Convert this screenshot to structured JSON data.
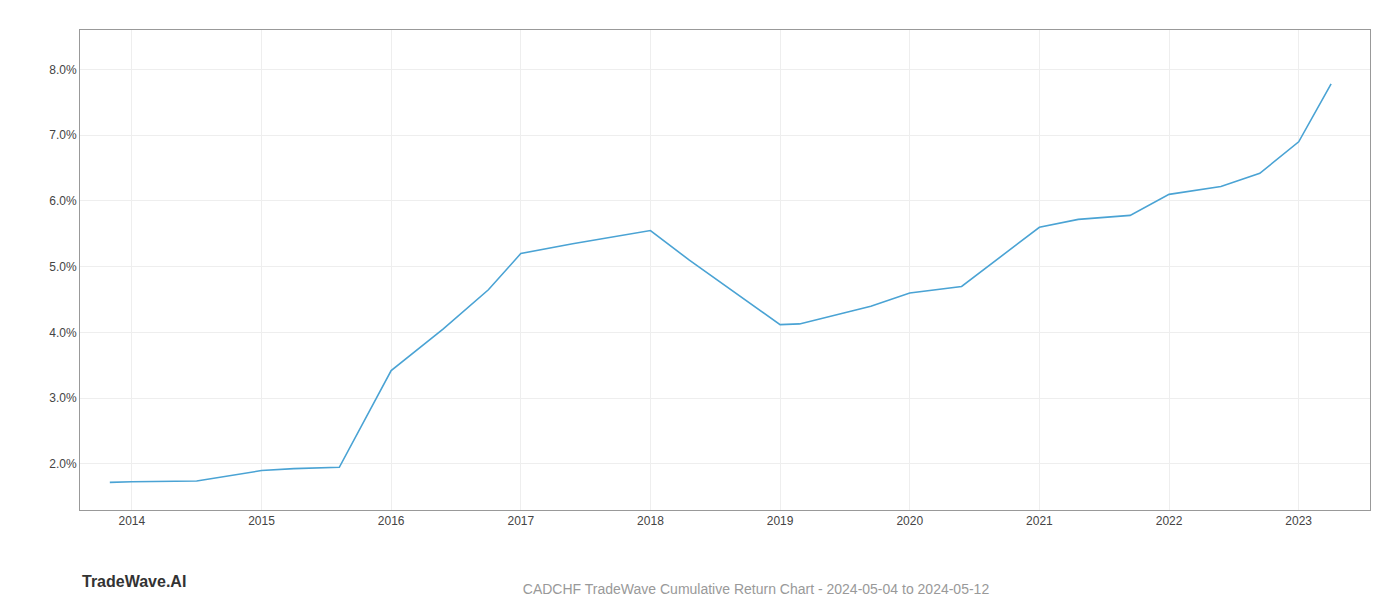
{
  "chart_data": {
    "type": "line",
    "title": "CADCHF TradeWave Cumulative Return Chart - 2024-05-04 to 2024-05-12",
    "annotations": [
      "TradeWave.AI"
    ],
    "x": [
      2013.83,
      2014.0,
      2014.5,
      2015.0,
      2015.25,
      2015.6,
      2016.0,
      2016.4,
      2016.75,
      2017.0,
      2017.4,
      2018.0,
      2018.3,
      2019.0,
      2019.15,
      2019.4,
      2019.7,
      2020.0,
      2020.4,
      2021.0,
      2021.3,
      2021.7,
      2022.0,
      2022.4,
      2022.7,
      2023.0,
      2023.25
    ],
    "values": [
      1.72,
      1.73,
      1.74,
      1.9,
      1.93,
      1.95,
      3.42,
      4.05,
      4.65,
      5.2,
      5.35,
      5.55,
      5.1,
      4.12,
      4.13,
      4.25,
      4.4,
      4.6,
      4.7,
      5.6,
      5.72,
      5.78,
      6.1,
      6.22,
      6.42,
      6.9,
      7.78
    ],
    "color": "#4aa3d4",
    "xlim": [
      2013.6,
      2023.55
    ],
    "ylim": [
      1.3,
      8.6
    ],
    "xticks": [
      2014,
      2015,
      2016,
      2017,
      2018,
      2019,
      2020,
      2021,
      2022,
      2023
    ],
    "yticks": [
      {
        "value": 2.0,
        "label": "2.0%"
      },
      {
        "value": 3.0,
        "label": "3.0%"
      },
      {
        "value": 4.0,
        "label": "4.0%"
      },
      {
        "value": 5.0,
        "label": "5.0%"
      },
      {
        "value": 6.0,
        "label": "6.0%"
      },
      {
        "value": 7.0,
        "label": "7.0%"
      },
      {
        "value": 8.0,
        "label": "8.0%"
      }
    ],
    "grid": true
  }
}
